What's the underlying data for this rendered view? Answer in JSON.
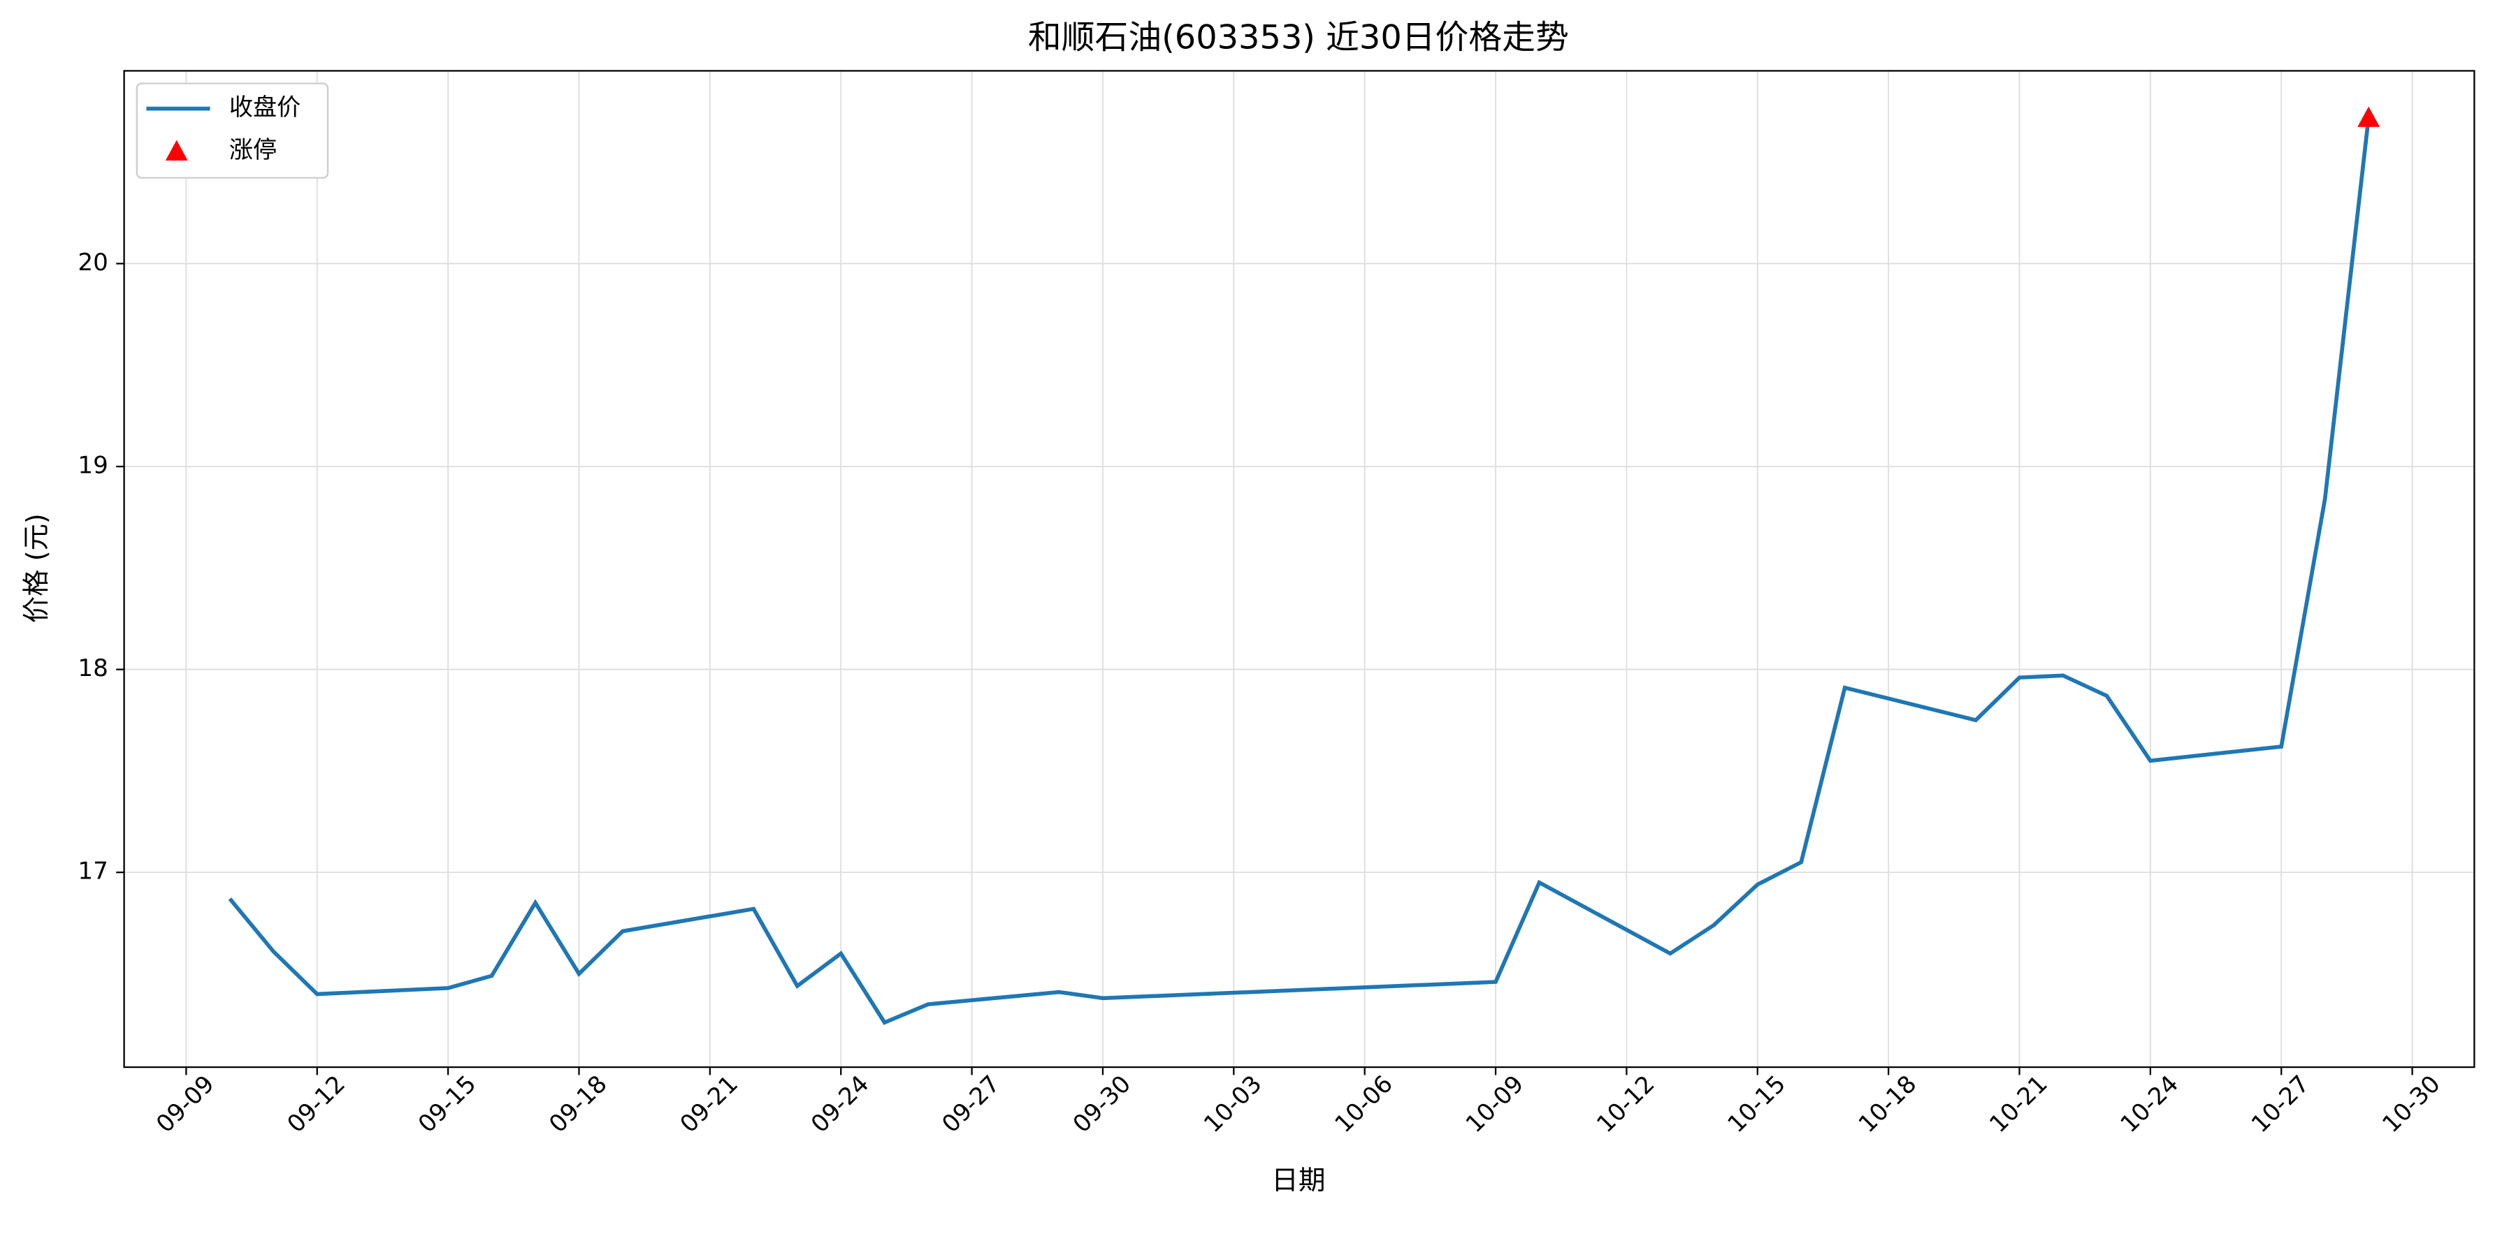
{
  "chart_data": {
    "type": "line",
    "title": "和顺石油(603353) 近30日价格走势",
    "xlabel": "日期",
    "ylabel": "价格 (元)",
    "x": [
      "09-10",
      "09-11",
      "09-12",
      "09-15",
      "09-16",
      "09-17",
      "09-18",
      "09-19",
      "09-22",
      "09-23",
      "09-24",
      "09-25",
      "09-26",
      "09-29",
      "09-30",
      "10-09",
      "10-10",
      "10-13",
      "10-14",
      "10-15",
      "10-16",
      "10-17",
      "10-20",
      "10-21",
      "10-22",
      "10-23",
      "10-24",
      "10-27",
      "10-28",
      "10-29"
    ],
    "series": [
      {
        "name": "收盘价",
        "color": "#1f77b4",
        "values": [
          16.87,
          16.61,
          16.4,
          16.43,
          16.49,
          16.85,
          16.5,
          16.71,
          16.82,
          16.44,
          16.6,
          16.26,
          16.35,
          16.41,
          16.38,
          16.46,
          16.95,
          16.6,
          16.74,
          16.94,
          17.05,
          17.91,
          17.75,
          17.96,
          17.97,
          17.87,
          17.55,
          17.62,
          18.84,
          20.72
        ]
      },
      {
        "name": "涨停",
        "color": "#ff0000",
        "marker": "triangle",
        "x": [
          "10-29"
        ],
        "values": [
          20.72
        ]
      }
    ],
    "xlim": [
      "09-09",
      "10-30"
    ],
    "xticks": [
      "09-09",
      "09-12",
      "09-15",
      "09-18",
      "09-21",
      "09-24",
      "09-27",
      "09-30",
      "10-03",
      "10-06",
      "10-09",
      "10-12",
      "10-15",
      "10-18",
      "10-21",
      "10-24",
      "10-27",
      "10-30"
    ],
    "ylim": [
      16.04,
      20.95
    ],
    "yticks": [
      17,
      18,
      19,
      20
    ],
    "grid": true,
    "legend": "upper left"
  }
}
